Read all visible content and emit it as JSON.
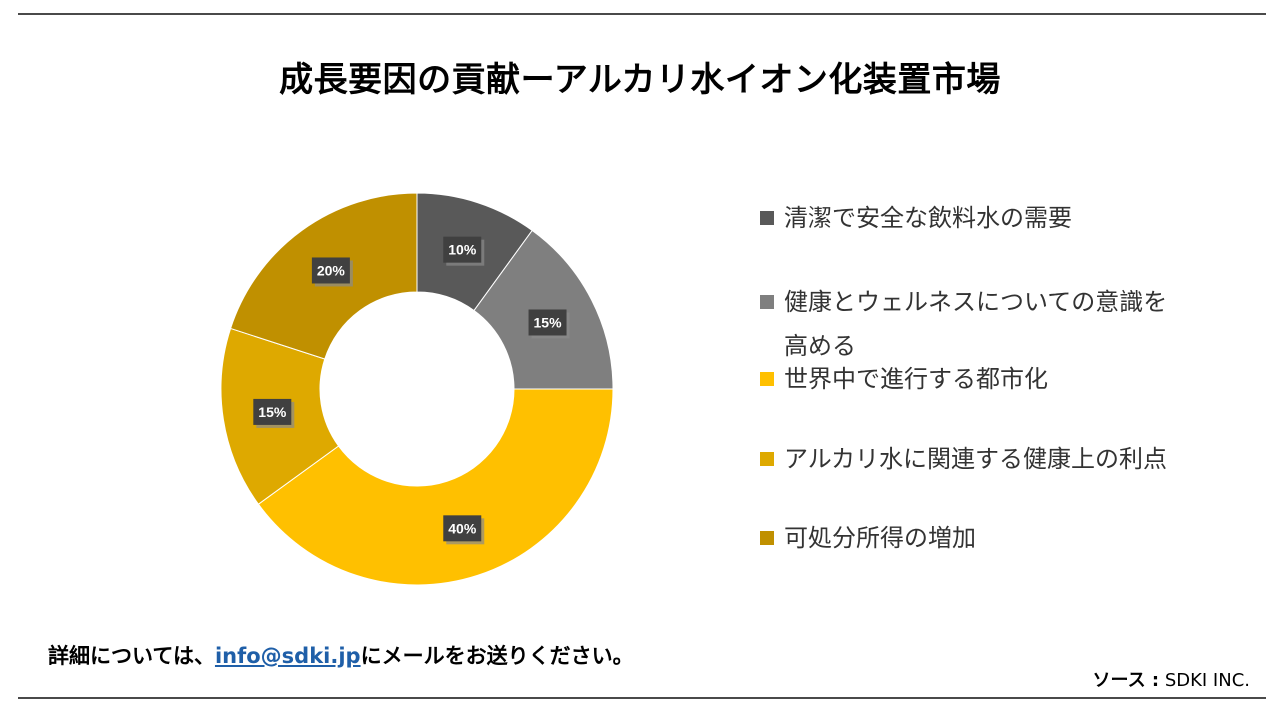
{
  "header": {
    "title": "成長要因の貢献ーアルカリ水イオン化装置市場"
  },
  "chart_data": {
    "type": "pie",
    "donut": true,
    "slices": [
      {
        "label": "清潔で安全な飲料水の需要",
        "value": 10,
        "data_label": "10%",
        "color": "#595959"
      },
      {
        "label": "健康とウェルネスについての意識を高める",
        "value": 15,
        "data_label": "15%",
        "color": "#7f7f7f"
      },
      {
        "label": "世界中で進行する都市化",
        "value": 40,
        "data_label": "40%",
        "color": "#ffc000"
      },
      {
        "label": "アルカリ水に関連する健康上の利点",
        "value": 15,
        "data_label": "15%",
        "color": "#dea900"
      },
      {
        "label": "可処分所得の増加",
        "value": 20,
        "data_label": "20%",
        "color": "#c09000"
      }
    ],
    "legend_position": "right"
  },
  "footer": {
    "note_before": "詳細については、",
    "email": "info@sdki.jp",
    "note_after": "にメールをお送りください。",
    "source_key": "ソース  :",
    "source_value": "SDKI INC."
  }
}
